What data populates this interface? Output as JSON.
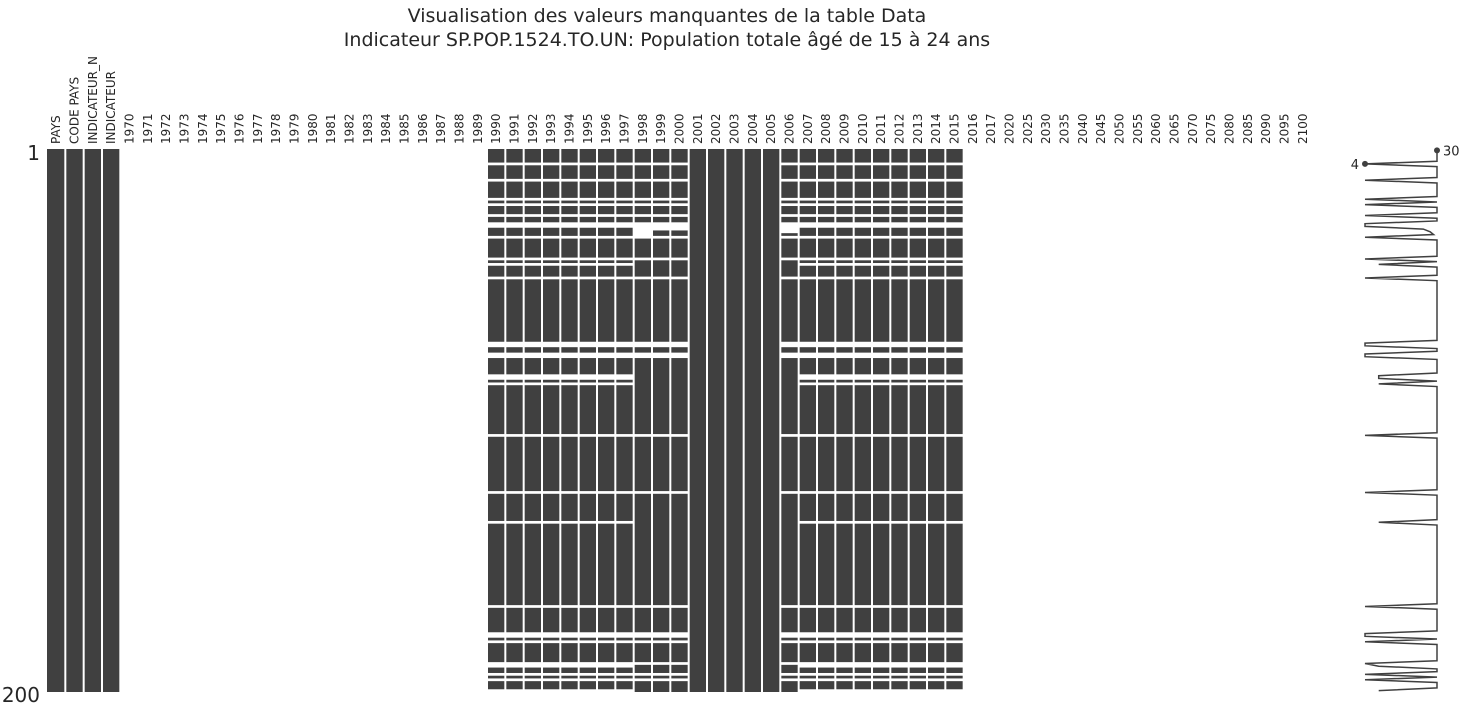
{
  "chart_data": {
    "type": "heatmap",
    "title": "Visualisation des valeurs manquantes de la table Data",
    "subtitle": "Indicateur SP.POP.1524.TO.UN: Population totale âgé de 15 à 24 ans",
    "columns": [
      "PAYS",
      "CODE PAYS",
      "INDICATEUR_N",
      "INDICATEUR",
      "1970",
      "1971",
      "1972",
      "1973",
      "1974",
      "1975",
      "1976",
      "1977",
      "1978",
      "1979",
      "1980",
      "1981",
      "1982",
      "1983",
      "1984",
      "1985",
      "1986",
      "1987",
      "1988",
      "1989",
      "1990",
      "1991",
      "1992",
      "1993",
      "1994",
      "1995",
      "1996",
      "1997",
      "1998",
      "1999",
      "2000",
      "2001",
      "2002",
      "2003",
      "2004",
      "2005",
      "2006",
      "2007",
      "2008",
      "2009",
      "2010",
      "2011",
      "2012",
      "2013",
      "2014",
      "2015",
      "2016",
      "2017",
      "2020",
      "2025",
      "2030",
      "2035",
      "2040",
      "2045",
      "2050",
      "2055",
      "2060",
      "2065",
      "2070",
      "2075",
      "2080",
      "2085",
      "2090",
      "2095",
      "2100"
    ],
    "row_labels": [
      "1",
      "200"
    ],
    "n_rows": 200,
    "sparkline_labels": {
      "min": "4",
      "max": "30"
    },
    "colors": {
      "present": "#404040",
      "missing": "#ffffff",
      "line": "#404040"
    },
    "missing_blocks": [
      {
        "columns": [
          "1990",
          "1991",
          "1992",
          "1993",
          "1994",
          "1995",
          "1996",
          "1997",
          "2007",
          "2008",
          "2009",
          "2010",
          "2011",
          "2012",
          "2013",
          "2014",
          "2015"
        ],
        "rows": [
          6,
          12,
          19,
          21,
          25,
          28,
          29,
          33,
          41,
          43,
          48,
          72,
          73,
          76,
          77,
          84,
          85,
          87,
          106,
          127,
          138,
          169,
          179,
          180,
          182,
          190,
          191,
          194,
          196,
          200
        ]
      },
      {
        "columns": [
          "1998",
          "1999",
          "2000",
          "2006"
        ],
        "rows": [
          6,
          12,
          19,
          21,
          25,
          33,
          41,
          48,
          72,
          73,
          76,
          77,
          106,
          127,
          169,
          179,
          180,
          182,
          190,
          194,
          196
        ]
      },
      {
        "columns": [
          "1998"
        ],
        "rows": [
          28,
          29,
          30,
          31,
          32
        ]
      },
      {
        "columns": [
          "1999",
          "2000",
          "2006"
        ],
        "rows": [
          28,
          29,
          30
        ]
      },
      {
        "columns": [
          "2006"
        ],
        "rows": [
          31
        ]
      }
    ]
  }
}
